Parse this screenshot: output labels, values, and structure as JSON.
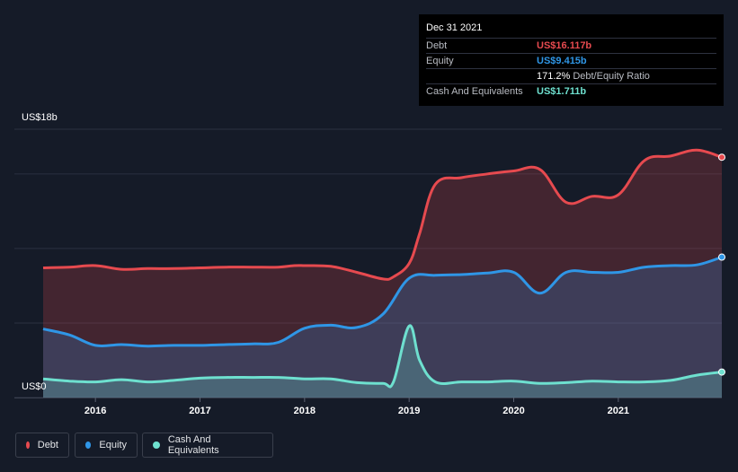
{
  "tooltip": {
    "date": "Dec 31 2021",
    "debt_label": "Debt",
    "debt_value": "US$16.117b",
    "equity_label": "Equity",
    "equity_value": "US$9.415b",
    "ratio_value": "171.2%",
    "ratio_label": "Debt/Equity Ratio",
    "cash_label": "Cash And Equivalents",
    "cash_value": "US$1.711b"
  },
  "legend": {
    "debt": "Debt",
    "equity": "Equity",
    "cash": "Cash And Equivalents"
  },
  "colors": {
    "debt": "#e64a4f",
    "equity": "#2f96e6",
    "cash": "#6ee0cf"
  },
  "chart_data": {
    "type": "area",
    "ymin_label": "US$0",
    "ymax_label": "US$18b",
    "ylim": [
      0,
      18
    ],
    "xlim": [
      2015.5,
      2021.99
    ],
    "x_ticks": [
      2016,
      2017,
      2018,
      2019,
      2020,
      2021
    ],
    "x_tick_labels": [
      "2016",
      "2017",
      "2018",
      "2019",
      "2020",
      "2021"
    ],
    "grid": true,
    "legend_position": "bottom-left",
    "series": [
      {
        "name": "Debt",
        "key": "debt",
        "points": [
          [
            2015.5,
            8.7
          ],
          [
            2015.75,
            8.75
          ],
          [
            2016.0,
            8.85
          ],
          [
            2016.25,
            8.6
          ],
          [
            2016.5,
            8.65
          ],
          [
            2016.75,
            8.65
          ],
          [
            2017.0,
            8.7
          ],
          [
            2017.25,
            8.75
          ],
          [
            2017.5,
            8.75
          ],
          [
            2017.75,
            8.75
          ],
          [
            2017.9,
            8.85
          ],
          [
            2018.0,
            8.85
          ],
          [
            2018.25,
            8.8
          ],
          [
            2018.5,
            8.4
          ],
          [
            2018.75,
            7.95
          ],
          [
            2018.85,
            8.1
          ],
          [
            2019.0,
            9.0
          ],
          [
            2019.1,
            11.0
          ],
          [
            2019.25,
            14.3
          ],
          [
            2019.5,
            14.75
          ],
          [
            2019.75,
            15.0
          ],
          [
            2020.0,
            15.2
          ],
          [
            2020.25,
            15.3
          ],
          [
            2020.5,
            13.1
          ],
          [
            2020.75,
            13.5
          ],
          [
            2021.0,
            13.6
          ],
          [
            2021.25,
            15.9
          ],
          [
            2021.5,
            16.2
          ],
          [
            2021.75,
            16.6
          ],
          [
            2021.99,
            16.12
          ]
        ]
      },
      {
        "name": "Equity",
        "key": "equity",
        "points": [
          [
            2015.5,
            4.6
          ],
          [
            2015.75,
            4.2
          ],
          [
            2016.0,
            3.5
          ],
          [
            2016.25,
            3.55
          ],
          [
            2016.5,
            3.45
          ],
          [
            2016.75,
            3.5
          ],
          [
            2017.0,
            3.5
          ],
          [
            2017.25,
            3.55
          ],
          [
            2017.5,
            3.6
          ],
          [
            2017.75,
            3.7
          ],
          [
            2018.0,
            4.65
          ],
          [
            2018.25,
            4.85
          ],
          [
            2018.5,
            4.7
          ],
          [
            2018.75,
            5.6
          ],
          [
            2019.0,
            8.0
          ],
          [
            2019.25,
            8.2
          ],
          [
            2019.5,
            8.25
          ],
          [
            2019.75,
            8.35
          ],
          [
            2020.0,
            8.4
          ],
          [
            2020.25,
            7.0
          ],
          [
            2020.5,
            8.4
          ],
          [
            2020.75,
            8.4
          ],
          [
            2021.0,
            8.4
          ],
          [
            2021.25,
            8.75
          ],
          [
            2021.5,
            8.85
          ],
          [
            2021.75,
            8.9
          ],
          [
            2021.99,
            9.42
          ]
        ]
      },
      {
        "name": "Cash And Equivalents",
        "key": "cash",
        "points": [
          [
            2015.5,
            1.25
          ],
          [
            2015.75,
            1.1
          ],
          [
            2016.0,
            1.05
          ],
          [
            2016.25,
            1.2
          ],
          [
            2016.5,
            1.05
          ],
          [
            2016.75,
            1.15
          ],
          [
            2017.0,
            1.3
          ],
          [
            2017.25,
            1.35
          ],
          [
            2017.5,
            1.35
          ],
          [
            2017.75,
            1.35
          ],
          [
            2018.0,
            1.25
          ],
          [
            2018.25,
            1.25
          ],
          [
            2018.5,
            1.0
          ],
          [
            2018.75,
            0.95
          ],
          [
            2018.85,
            1.05
          ],
          [
            2019.0,
            4.8
          ],
          [
            2019.1,
            2.5
          ],
          [
            2019.25,
            1.05
          ],
          [
            2019.5,
            1.05
          ],
          [
            2019.75,
            1.05
          ],
          [
            2020.0,
            1.1
          ],
          [
            2020.25,
            0.95
          ],
          [
            2020.5,
            1.0
          ],
          [
            2020.75,
            1.1
          ],
          [
            2021.0,
            1.05
          ],
          [
            2021.25,
            1.05
          ],
          [
            2021.5,
            1.15
          ],
          [
            2021.75,
            1.5
          ],
          [
            2021.99,
            1.71
          ]
        ]
      }
    ]
  }
}
